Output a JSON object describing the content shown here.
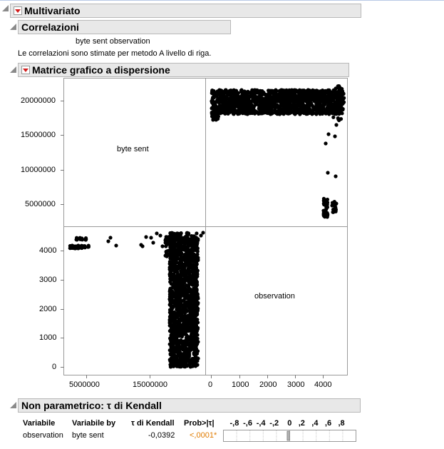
{
  "sections": {
    "multivariate": {
      "title": "Multivariato"
    },
    "correlations": {
      "title": "Correlazioni",
      "columns": "byte sent observation",
      "note": "Le correlazioni sono stimate per metodo A livello di riga."
    },
    "scatter_matrix": {
      "title": "Matrice grafico a dispersione"
    },
    "kendall": {
      "title": "Non parametrico: τ di Kendall"
    }
  },
  "chart_data": {
    "type": "scatter",
    "variables": [
      "byte sent",
      "observation"
    ],
    "y_ticks_byte_sent": [
      "20000000",
      "15000000",
      "10000000",
      "5000000"
    ],
    "y_ticks_observation": [
      "4000",
      "3000",
      "2000",
      "1000",
      "0"
    ],
    "x_ticks_byte_sent": [
      "5000000",
      "15000000"
    ],
    "x_ticks_observation": [
      "0",
      "1000",
      "2000",
      "3000",
      "4000"
    ],
    "byte_sent_range": [
      1000000,
      22000000
    ],
    "observation_range": [
      -200,
      4700
    ],
    "point_color": "#000000"
  },
  "kendall": {
    "headers": {
      "variable": "Variabile",
      "by": "Variabile by",
      "tau": "τ di Kendall",
      "prob": "Prob>|τ|"
    },
    "scale": [
      "-,8",
      "-,6",
      "-,4",
      "-,2",
      "0",
      ",2",
      ",4",
      ",6",
      ",8"
    ],
    "row": {
      "variable": "observation",
      "by": "byte sent",
      "tau": "-0,0392",
      "prob": "<,0001*",
      "tau_value": -0.0392
    },
    "prob_color": "#e07b00"
  }
}
